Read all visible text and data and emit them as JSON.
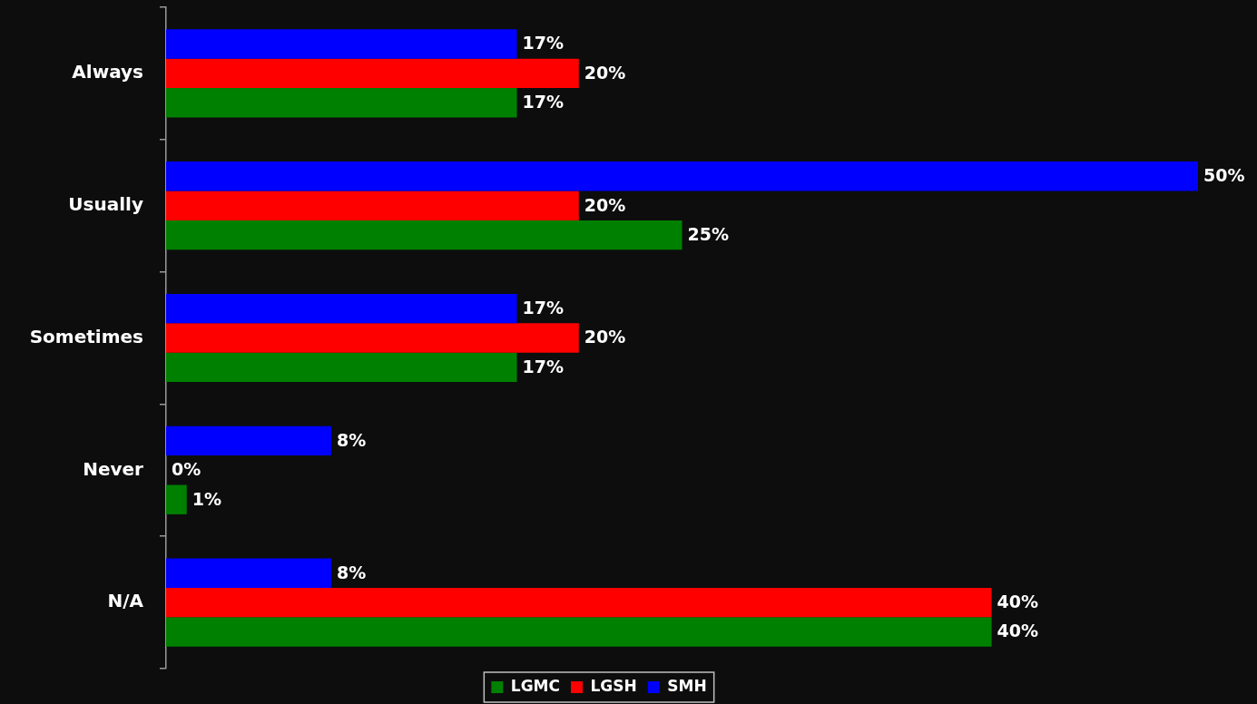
{
  "chart_data": {
    "type": "bar",
    "orientation": "horizontal",
    "categories": [
      "Always",
      "Usually",
      "Sometimes",
      "Never",
      "N/A"
    ],
    "series": [
      {
        "name": "LGMC",
        "color": "#008000",
        "values": [
          17,
          25,
          17,
          1,
          40
        ],
        "value_labels": [
          "17%",
          "25%",
          "17%",
          "1%",
          "40%"
        ]
      },
      {
        "name": "LGSH",
        "color": "#ff0000",
        "values": [
          20,
          20,
          20,
          0,
          40
        ],
        "value_labels": [
          "20%",
          "20%",
          "20%",
          "0%",
          "40%"
        ]
      },
      {
        "name": "SMH",
        "color": "#0000ff",
        "values": [
          17,
          50,
          17,
          8,
          8
        ],
        "value_labels": [
          "17%",
          "50%",
          "17%",
          "8%",
          "8%"
        ]
      }
    ],
    "legend": "bottom",
    "tick_labels": "y"
  }
}
